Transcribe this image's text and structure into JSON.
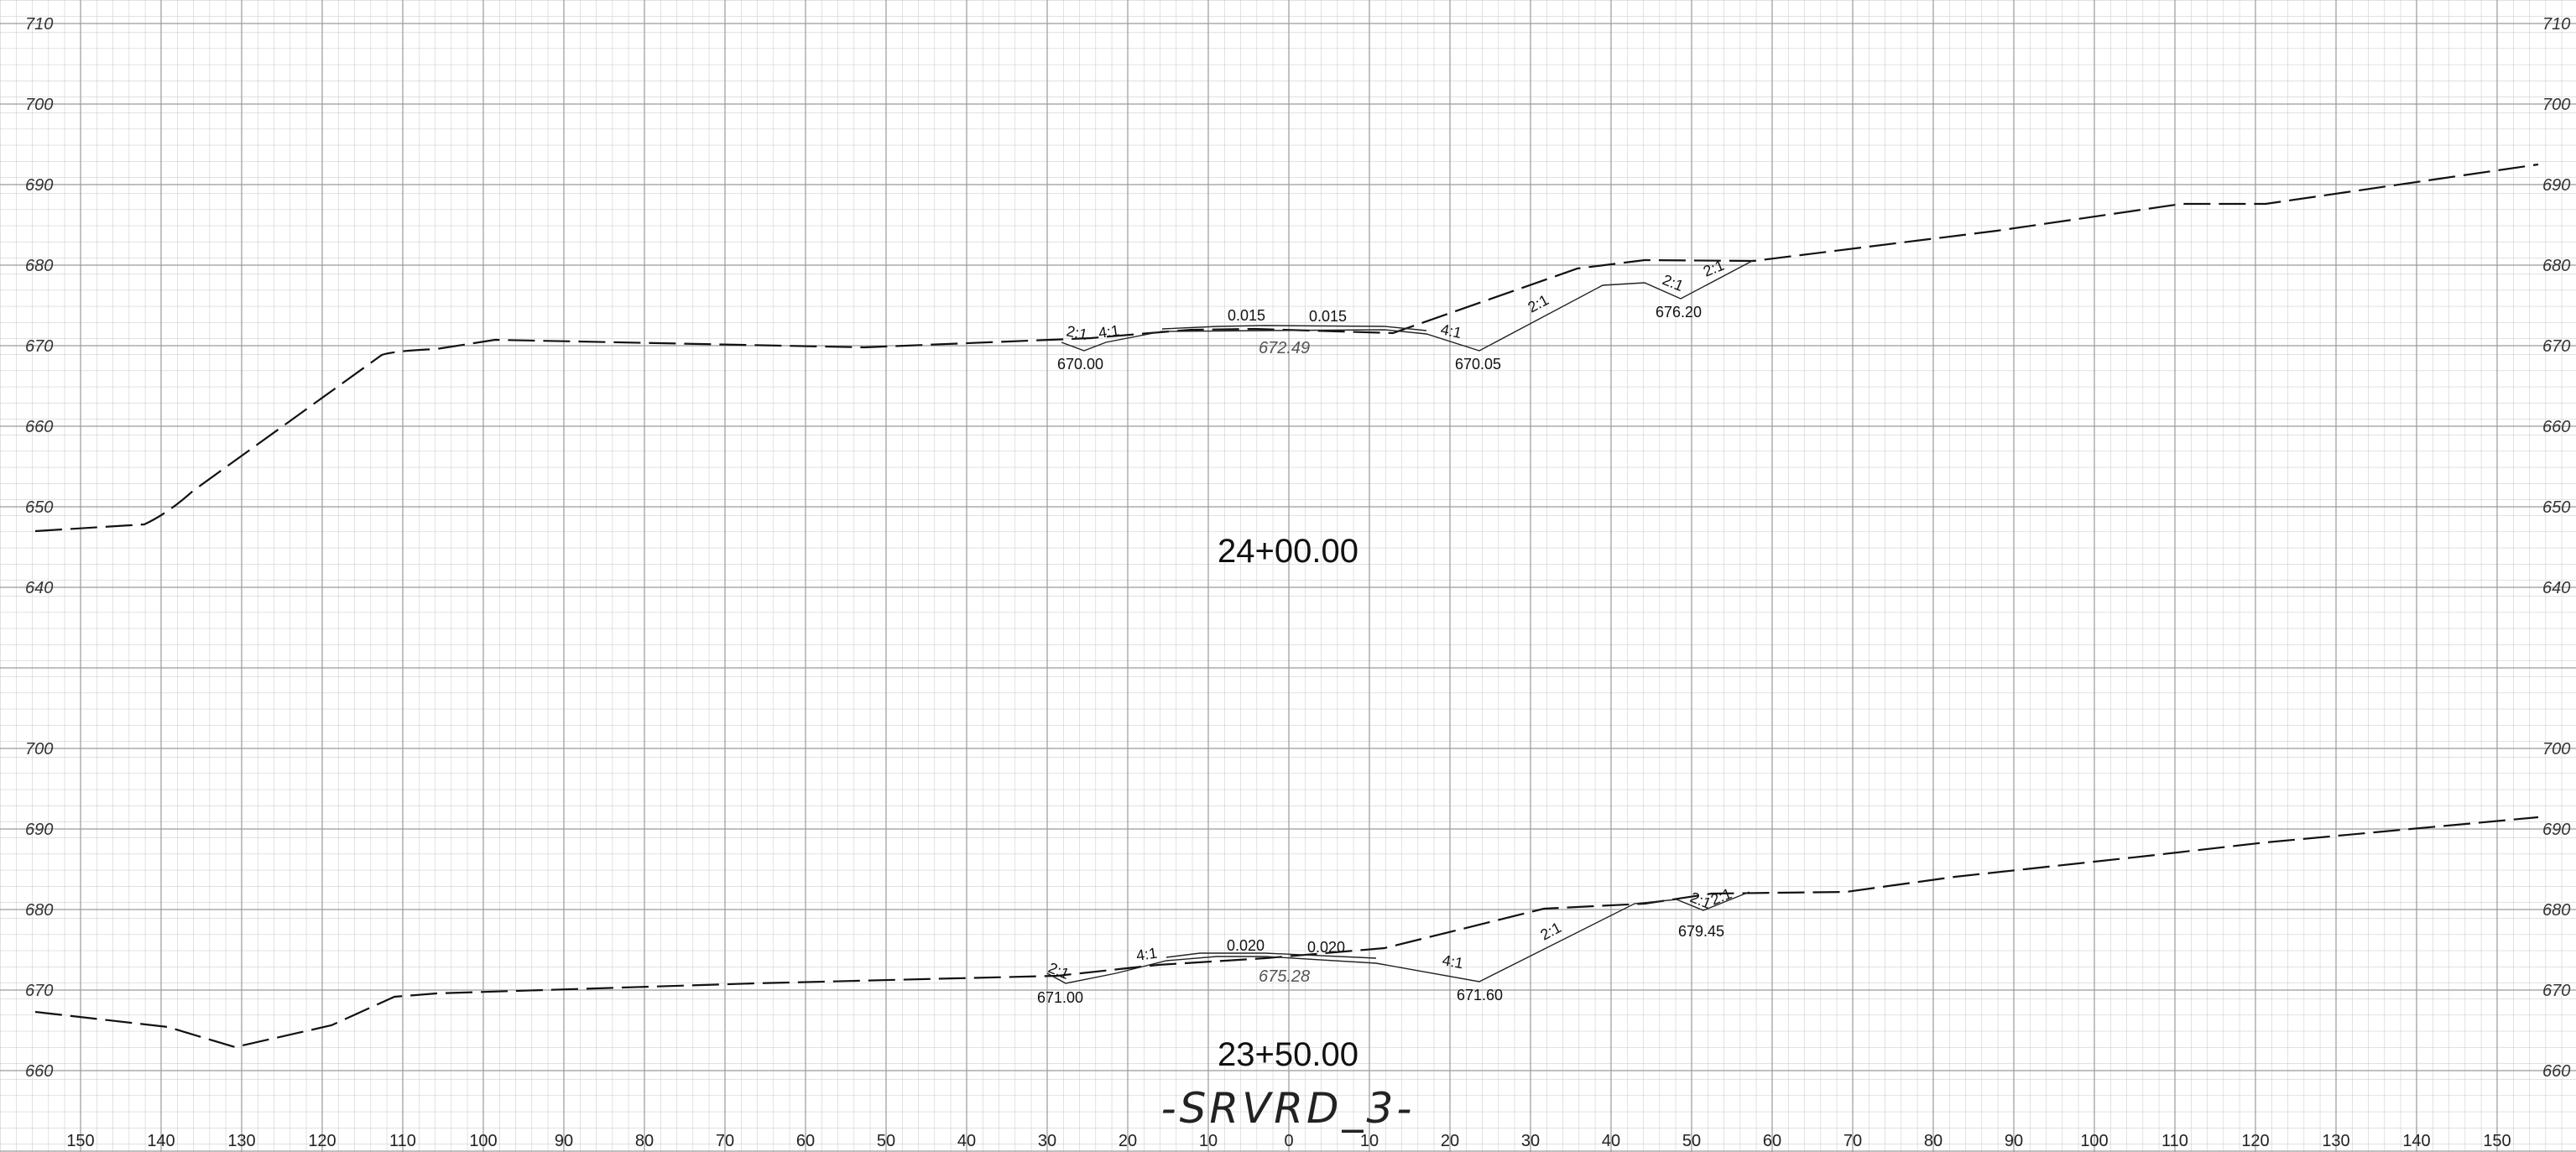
{
  "sheet_title": "-SRVRD_3-",
  "sections": [
    {
      "station": "24+00.00",
      "elevation_labels": [
        "710",
        "700",
        "690",
        "680",
        "670",
        "660",
        "650",
        "640"
      ],
      "slope_labels": [
        "2:1",
        "4:1",
        "4:1",
        "2:1",
        "2:1",
        "2:1"
      ],
      "cross_slopes": [
        "0.015",
        "0.015"
      ],
      "elevations": [
        "670.00",
        "670.05",
        "676.20"
      ],
      "centerline_elevation": "672.49"
    },
    {
      "station": "23+50.00",
      "elevation_labels": [
        "700",
        "690",
        "680",
        "670",
        "660"
      ],
      "slope_labels": [
        "2:1",
        "4:1",
        "4:1",
        "2:1",
        "2:1",
        "2:1"
      ],
      "cross_slopes": [
        "0.020",
        "0.020"
      ],
      "elevations": [
        "671.00",
        "671.60",
        "679.45"
      ],
      "centerline_elevation": "675.28"
    }
  ],
  "offset_labels": [
    "150",
    "140",
    "130",
    "120",
    "110",
    "100",
    "90",
    "80",
    "70",
    "60",
    "50",
    "40",
    "30",
    "20",
    "10",
    "0",
    "10",
    "20",
    "30",
    "40",
    "50",
    "60",
    "70",
    "80",
    "90",
    "100",
    "110",
    "120",
    "130",
    "140",
    "150"
  ]
}
